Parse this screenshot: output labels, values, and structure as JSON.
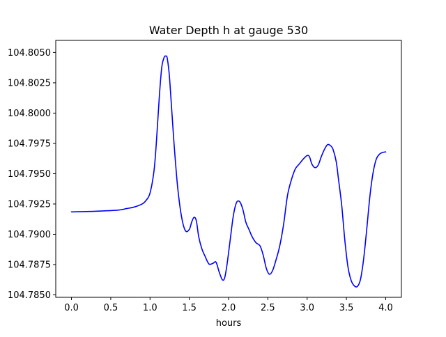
{
  "chart_data": {
    "type": "line",
    "title": "Water Depth h at gauge 530",
    "xlabel": "hours",
    "ylabel": "",
    "xlim": [
      -0.2,
      4.2
    ],
    "ylim": [
      104.7848,
      104.806
    ],
    "xticks": [
      0.0,
      0.5,
      1.0,
      1.5,
      2.0,
      2.5,
      3.0,
      3.5,
      4.0
    ],
    "xtick_labels": [
      "0.0",
      "0.5",
      "1.0",
      "1.5",
      "2.0",
      "2.5",
      "3.0",
      "3.5",
      "4.0"
    ],
    "yticks": [
      104.785,
      104.7875,
      104.79,
      104.7925,
      104.795,
      104.7975,
      104.8,
      104.8025,
      104.805
    ],
    "ytick_labels": [
      "104.7850",
      "104.7875",
      "104.7900",
      "104.7925",
      "104.7950",
      "104.7975",
      "104.8000",
      "104.8025",
      "104.8050"
    ],
    "grid": false,
    "series": [
      {
        "color": "#0000ff",
        "x": [
          0.0,
          0.3,
          0.6,
          0.7,
          0.8,
          0.9,
          0.95,
          1.0,
          1.05,
          1.08,
          1.12,
          1.15,
          1.18,
          1.2,
          1.22,
          1.25,
          1.3,
          1.35,
          1.4,
          1.45,
          1.5,
          1.53,
          1.56,
          1.59,
          1.62,
          1.66,
          1.7,
          1.75,
          1.8,
          1.84,
          1.88,
          1.92,
          1.95,
          1.98,
          2.02,
          2.06,
          2.1,
          2.14,
          2.18,
          2.22,
          2.26,
          2.3,
          2.35,
          2.4,
          2.44,
          2.48,
          2.52,
          2.56,
          2.6,
          2.65,
          2.7,
          2.75,
          2.8,
          2.85,
          2.9,
          2.95,
          3.0,
          3.03,
          3.06,
          3.1,
          3.14,
          3.18,
          3.22,
          3.26,
          3.3,
          3.33,
          3.37,
          3.4,
          3.44,
          3.48,
          3.52,
          3.56,
          3.6,
          3.64,
          3.68,
          3.72,
          3.76,
          3.8,
          3.84,
          3.88,
          3.92,
          3.96,
          4.0
        ],
        "y": [
          104.79185,
          104.7919,
          104.792,
          104.79212,
          104.79225,
          104.7925,
          104.7928,
          104.7934,
          104.7952,
          104.7975,
          104.8015,
          104.8038,
          104.8046,
          104.8047,
          104.8045,
          104.8028,
          104.798,
          104.794,
          104.7915,
          104.7903,
          104.7904,
          104.791,
          104.7914,
          104.7911,
          104.7898,
          104.7888,
          104.7882,
          104.78755,
          104.7876,
          104.7877,
          104.7869,
          104.78625,
          104.7864,
          104.7875,
          104.7895,
          104.7915,
          104.7926,
          104.7927,
          104.7921,
          104.791,
          104.7904,
          104.7898,
          104.7893,
          104.78905,
          104.7883,
          104.7872,
          104.7867,
          104.787,
          104.7878,
          104.789,
          104.7908,
          104.7932,
          104.7945,
          104.7954,
          104.7958,
          104.7962,
          104.7965,
          104.7964,
          104.7958,
          104.7955,
          104.7957,
          104.7964,
          104.797,
          104.7974,
          104.7973,
          104.797,
          104.796,
          104.7945,
          104.7924,
          104.7895,
          104.7873,
          104.7862,
          104.78575,
          104.7857,
          104.7863,
          104.788,
          104.7905,
          104.7932,
          104.7951,
          104.7962,
          104.7966,
          104.79675,
          104.7968
        ]
      }
    ]
  }
}
